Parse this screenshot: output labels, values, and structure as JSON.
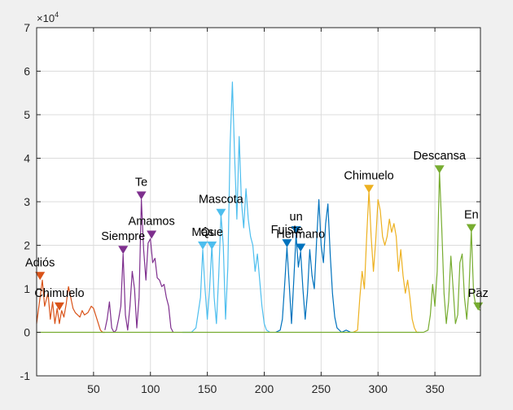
{
  "chart_data": {
    "type": "line",
    "title": "",
    "xlabel": "",
    "ylabel": "",
    "xlim": [
      0,
      390
    ],
    "ylim": [
      -1,
      7
    ],
    "y_scale_exponent": "×10^4",
    "y_units_multiplier": 10000,
    "xticks": [
      50,
      100,
      150,
      200,
      250,
      300,
      350
    ],
    "yticks": [
      -1,
      0,
      1,
      2,
      3,
      4,
      5,
      6,
      7
    ],
    "x_tick_labels": [
      "50",
      "100",
      "150",
      "200",
      "250",
      "300",
      "350"
    ],
    "y_tick_labels": [
      "-1",
      "0",
      "1",
      "2",
      "3",
      "4",
      "5",
      "6",
      "7"
    ],
    "exponent_label": "×10",
    "exponent_power": "4",
    "grid": true,
    "legend": "none",
    "series": [
      {
        "color": "#d95319",
        "x": [
          0,
          3,
          5,
          7,
          10,
          12,
          14,
          16,
          18,
          20,
          22,
          24,
          26,
          28,
          30,
          32,
          34,
          36,
          38,
          40,
          42,
          45,
          48,
          50,
          53,
          56,
          58,
          60
        ],
        "y": [
          0.2,
          0.8,
          1.2,
          0.6,
          0.9,
          0.3,
          0.7,
          0.2,
          0.55,
          0.2,
          0.5,
          0.35,
          0.65,
          1.05,
          0.8,
          0.55,
          0.45,
          0.4,
          0.35,
          0.5,
          0.4,
          0.45,
          0.6,
          0.55,
          0.3,
          0.05,
          0.0,
          0.0
        ]
      },
      {
        "color": "#7e2f8e",
        "x": [
          60,
          62,
          64,
          66,
          68,
          70,
          72,
          74,
          76,
          78,
          80,
          82,
          84,
          86,
          88,
          90,
          92,
          94,
          96,
          98,
          100,
          102,
          104,
          106,
          108,
          110,
          112,
          114,
          116,
          118,
          120
        ],
        "y": [
          0.05,
          0.3,
          0.7,
          0.1,
          0.0,
          0.05,
          0.3,
          0.6,
          1.8,
          0.4,
          0.05,
          0.6,
          1.4,
          1.0,
          0.1,
          0.8,
          3.05,
          1.9,
          1.2,
          2.05,
          2.15,
          1.6,
          1.7,
          1.25,
          1.2,
          1.05,
          1.1,
          0.8,
          0.6,
          0.1,
          0.0
        ]
      },
      {
        "color": "#4dbeee",
        "x": [
          128,
          136,
          140,
          144,
          146,
          148,
          150,
          152,
          154,
          156,
          158,
          160,
          162,
          164,
          166,
          168,
          170,
          172,
          174,
          176,
          178,
          180,
          182,
          184,
          186,
          188,
          190,
          192,
          194,
          196,
          198,
          200,
          202,
          205
        ],
        "y": [
          0.0,
          0.0,
          0.1,
          0.8,
          1.9,
          1.0,
          0.3,
          1.0,
          2.0,
          0.8,
          0.2,
          1.3,
          2.7,
          2.0,
          0.3,
          1.5,
          4.3,
          5.75,
          4.0,
          2.6,
          4.5,
          3.0,
          2.4,
          3.3,
          2.6,
          2.2,
          2.0,
          1.4,
          1.8,
          1.2,
          0.6,
          0.2,
          0.05,
          0.0
        ]
      },
      {
        "color": "#0072bd",
        "x": [
          210,
          214,
          216,
          218,
          220,
          222,
          224,
          226,
          228,
          230,
          232,
          234,
          236,
          238,
          240,
          242,
          244,
          246,
          248,
          250,
          252,
          254,
          256,
          258,
          260,
          262,
          264,
          268,
          272,
          276
        ],
        "y": [
          0.0,
          0.05,
          0.3,
          1.1,
          1.95,
          1.1,
          0.2,
          1.2,
          2.25,
          1.5,
          1.85,
          1.0,
          0.3,
          0.9,
          1.9,
          1.3,
          1.0,
          2.1,
          3.05,
          2.0,
          1.6,
          2.5,
          2.95,
          1.8,
          0.9,
          0.35,
          0.1,
          0.0,
          0.05,
          0.0
        ]
      },
      {
        "color": "#edb120",
        "x": [
          278,
          282,
          284,
          286,
          288,
          290,
          292,
          294,
          296,
          298,
          300,
          302,
          304,
          306,
          308,
          310,
          312,
          314,
          316,
          318,
          320,
          322,
          324,
          326,
          328,
          330,
          332,
          334,
          336
        ],
        "y": [
          0.0,
          0.05,
          0.8,
          1.4,
          1.0,
          2.2,
          3.25,
          2.2,
          1.4,
          2.1,
          3.05,
          2.8,
          2.2,
          2.0,
          2.2,
          2.6,
          2.3,
          2.5,
          2.2,
          1.4,
          1.9,
          1.3,
          0.9,
          1.2,
          0.8,
          0.3,
          0.1,
          0.0,
          0.0
        ]
      },
      {
        "color": "#77ac30",
        "x": [
          0,
          340,
          344,
          346,
          348,
          350,
          352,
          354,
          356,
          358,
          360,
          362,
          364,
          366,
          368,
          370,
          372,
          374,
          376,
          378,
          380,
          382,
          384,
          386,
          388,
          390
        ],
        "y": [
          0.0,
          0.0,
          0.05,
          0.4,
          1.1,
          0.6,
          1.4,
          3.7,
          2.4,
          0.9,
          0.2,
          0.7,
          1.75,
          1.0,
          0.2,
          0.4,
          1.6,
          1.8,
          0.8,
          0.3,
          1.0,
          2.35,
          0.9,
          0.6,
          0.55,
          0.5
        ]
      }
    ],
    "peaks": [
      {
        "label": "Adiós",
        "x": 3,
        "y": 1.2,
        "color": "#d95319"
      },
      {
        "label": "Chimuelo",
        "x": 20,
        "y": 0.5,
        "color": "#d95319"
      },
      {
        "label": "Siempre",
        "x": 76,
        "y": 1.8,
        "color": "#7e2f8e"
      },
      {
        "label": "Te",
        "x": 92,
        "y": 3.05,
        "color": "#7e2f8e"
      },
      {
        "label": "Amamos",
        "x": 101,
        "y": 2.15,
        "color": "#7e2f8e"
      },
      {
        "label": "Más",
        "x": 146,
        "y": 1.9,
        "color": "#4dbeee"
      },
      {
        "label": "Que",
        "x": 154,
        "y": 1.9,
        "color": "#4dbeee"
      },
      {
        "label": "Mascota",
        "x": 162,
        "y": 2.65,
        "color": "#4dbeee"
      },
      {
        "label": "Fuiste",
        "x": 220,
        "y": 1.95,
        "color": "#0072bd"
      },
      {
        "label": "un",
        "x": 228,
        "y": 2.25,
        "color": "#0072bd"
      },
      {
        "label": "Hermano",
        "x": 232,
        "y": 1.85,
        "color": "#0072bd"
      },
      {
        "label": "Chimuelo",
        "x": 292,
        "y": 3.2,
        "color": "#edb120"
      },
      {
        "label": "Descansa",
        "x": 354,
        "y": 3.65,
        "color": "#77ac30"
      },
      {
        "label": "En",
        "x": 382,
        "y": 2.3,
        "color": "#77ac30"
      },
      {
        "label": "Paz",
        "x": 388,
        "y": 0.5,
        "color": "#77ac30"
      }
    ]
  }
}
